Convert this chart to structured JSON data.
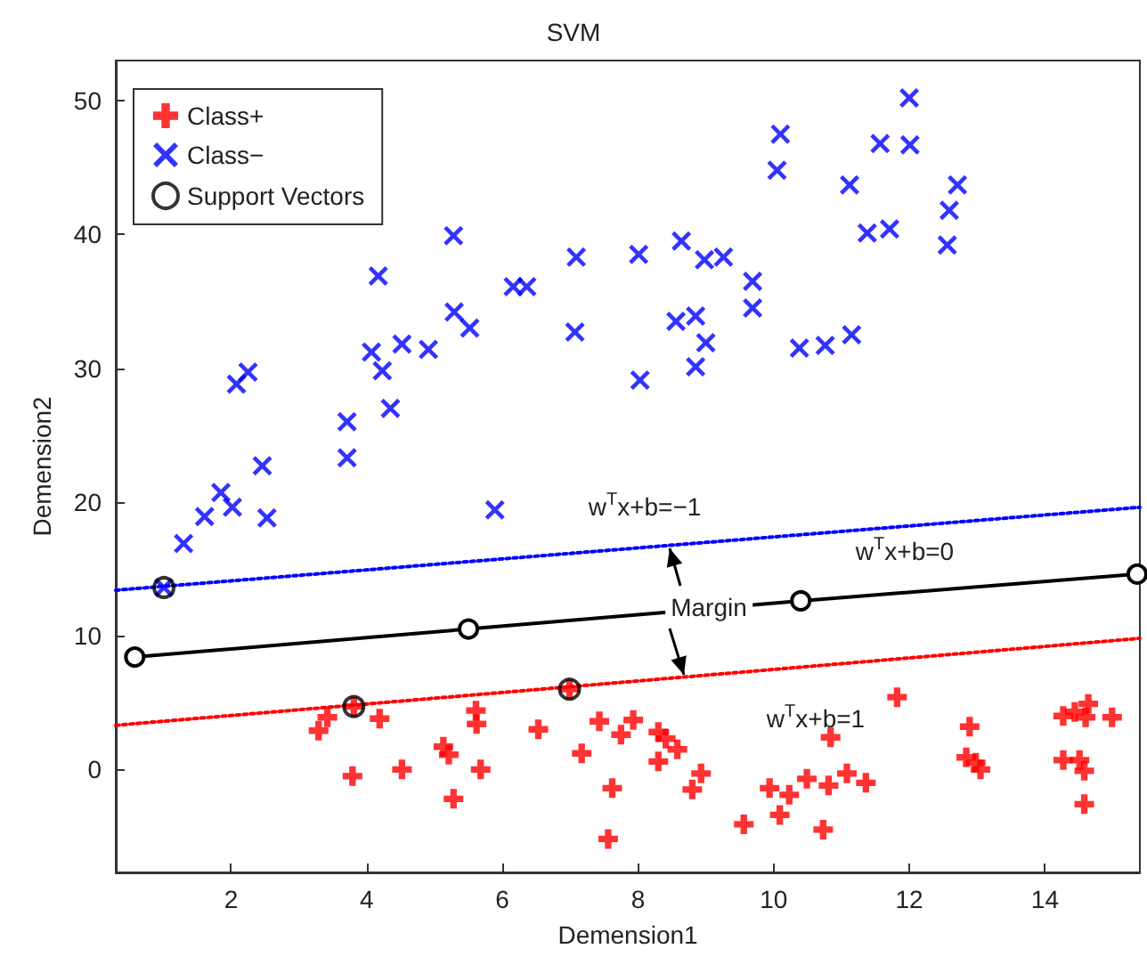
{
  "chart_data": {
    "type": "scatter",
    "title": "SVM",
    "xlabel": "Demension1",
    "ylabel": "Demension2",
    "xlim": [
      0.3,
      15.4
    ],
    "xticks": [
      2,
      4,
      6,
      8,
      10,
      12,
      14
    ],
    "ylim": [
      -7.7,
      53
    ],
    "yticks": [
      0,
      10,
      20,
      30,
      40,
      50
    ],
    "grid": false,
    "legend": "top left",
    "series": [
      {
        "name": "Class+",
        "color": "#ff0000",
        "marker": "cross",
        "x": [
          3.81,
          6.99,
          3.29,
          3.42,
          4.19,
          3.79,
          4.52,
          5.13,
          5.21,
          5.28,
          5.61,
          5.62,
          5.68,
          6.53,
          7.17,
          7.43,
          7.62,
          7.56,
          7.75,
          7.93,
          8.3,
          8.41,
          8.58,
          8.3,
          8.93,
          8.8,
          9.56,
          9.94,
          10.09,
          10.23,
          10.49,
          10.73,
          10.81,
          10.84,
          11.08,
          11.36,
          11.82,
          12.89,
          12.84,
          12.98,
          13.05,
          14.27,
          14.44,
          14.64,
          14.6,
          14.99,
          14.27,
          14.51,
          14.58,
          14.58
        ],
        "values": [
          4.7,
          6.0,
          2.9,
          3.9,
          3.8,
          -0.5,
          0.0,
          1.7,
          1.1,
          -2.2,
          4.4,
          3.4,
          0.0,
          3.0,
          1.2,
          3.6,
          -1.4,
          -5.2,
          2.6,
          3.7,
          2.8,
          2.3,
          1.5,
          0.6,
          -0.3,
          -1.5,
          -4.1,
          -1.4,
          -3.4,
          -1.9,
          -0.7,
          -4.5,
          -1.2,
          2.4,
          -0.3,
          -1.0,
          5.4,
          3.2,
          0.9,
          0.5,
          0.0,
          4.0,
          4.3,
          4.9,
          3.9,
          3.9,
          0.7,
          0.7,
          -0.1,
          -2.6
        ]
      },
      {
        "name": "Class−",
        "color": "#0000ff",
        "marker": "x",
        "x": [
          1.01,
          1.3,
          2.08,
          2.25,
          2.46,
          1.85,
          2.02,
          1.61,
          2.53,
          3.71,
          3.71,
          4.17,
          4.07,
          4.23,
          4.35,
          4.52,
          4.91,
          5.28,
          5.29,
          5.52,
          6.16,
          6.36,
          7.09,
          7.07,
          5.89,
          8.01,
          8.03,
          8.64,
          8.98,
          9.26,
          8.56,
          8.85,
          9.0,
          8.85,
          9.69,
          9.69,
          10.1,
          10.05,
          10.38,
          10.76,
          11.15,
          11.12,
          11.38,
          11.71,
          11.57,
          12.0,
          12.01,
          12.71,
          12.59,
          12.56
        ],
        "values": [
          13.6,
          16.9,
          28.8,
          29.7,
          22.7,
          20.7,
          19.6,
          18.9,
          18.8,
          26.0,
          23.3,
          36.9,
          31.2,
          29.8,
          27.0,
          31.8,
          31.4,
          39.9,
          34.2,
          33.0,
          36.1,
          36.1,
          38.3,
          32.7,
          19.4,
          38.5,
          29.1,
          39.5,
          38.1,
          38.3,
          33.5,
          33.9,
          31.9,
          30.1,
          36.5,
          34.5,
          47.5,
          44.8,
          31.5,
          31.7,
          32.5,
          43.7,
          40.1,
          40.4,
          46.8,
          50.2,
          46.7,
          43.7,
          41.8,
          39.2
        ]
      },
      {
        "name": "Support Vectors",
        "color": "#000000",
        "marker": "circle",
        "x": [
          1.01,
          3.81,
          6.99
        ],
        "values": [
          13.6,
          4.7,
          6.0
        ]
      },
      {
        "type": "line",
        "color": "#0000ff",
        "line_style": "dotted",
        "x": [
          0.3,
          15.4
        ],
        "values": [
          13.4,
          19.6
        ]
      },
      {
        "type": "line",
        "color": "#000000",
        "line_style": "solid",
        "marker": "circle",
        "x": [
          0.58,
          5.5,
          10.4,
          15.36
        ],
        "values": [
          8.4,
          10.5,
          12.6,
          14.6
        ]
      },
      {
        "type": "line",
        "color": "#ff0000",
        "line_style": "dotted",
        "x": [
          0.3,
          15.4
        ],
        "values": [
          3.3,
          9.8
        ]
      }
    ],
    "annotations": [
      "w$^{T}$x+b=−1",
      "w$^{T}$x+b=0",
      "Margin",
      "w$^{T}$x+b=1"
    ]
  }
}
